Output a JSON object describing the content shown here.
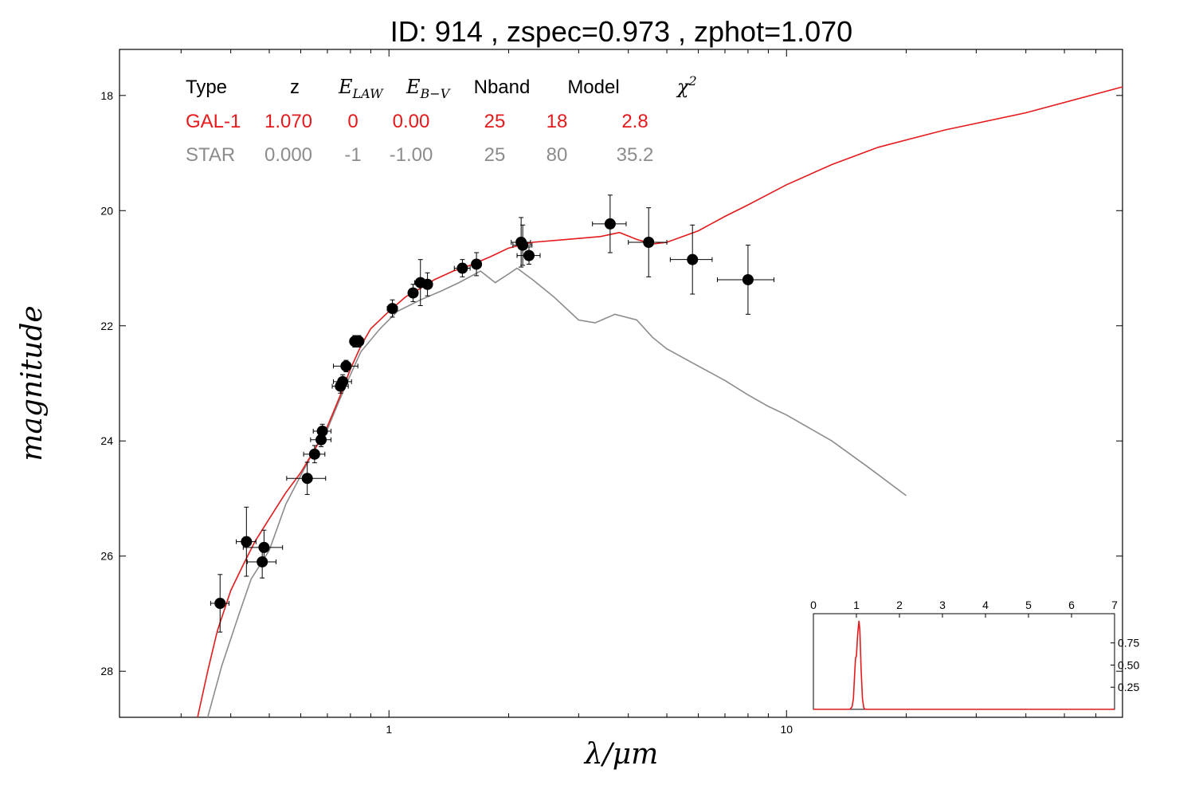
{
  "chart_data": {
    "type": "scatter",
    "title": "ID:  914    , zspec=0.973 , zphot=1.070",
    "xlabel": "λ/μm",
    "ylabel": "magnitude",
    "xscale": "log",
    "xlim": [
      0.21,
      70
    ],
    "ylim": [
      28.8,
      17.2
    ],
    "y_inverted": true,
    "x_tick_labels": [
      {
        "value": 1,
        "label": "1"
      },
      {
        "value": 10,
        "label": "10"
      }
    ],
    "y_tick_labels": [
      {
        "value": 18,
        "label": "18"
      },
      {
        "value": 20,
        "label": "20"
      },
      {
        "value": 22,
        "label": "22"
      },
      {
        "value": 24,
        "label": "24"
      },
      {
        "value": 26,
        "label": "26"
      },
      {
        "value": 28,
        "label": "28"
      }
    ],
    "colors": {
      "galaxy": "#e41a1c",
      "star": "#8c8c8c",
      "points": "#000000"
    },
    "fit_table": {
      "headers": [
        "Type",
        "z",
        "E",
        "E",
        "Nband",
        "Model",
        "χ"
      ],
      "header_subscripts": [
        "",
        "",
        "LAW",
        "B−V",
        "",
        "",
        ""
      ],
      "header_superscripts": [
        "",
        "",
        "",
        "",
        "",
        "",
        "2"
      ],
      "rows": [
        {
          "color": "#e41a1c",
          "cells": [
            "GAL-1",
            "1.070",
            "0",
            "0.00",
            "25",
            "18",
            "2.8"
          ]
        },
        {
          "color": "#8c8c8c",
          "cells": [
            "STAR",
            "0.000",
            "-1",
            "-1.00",
            "25",
            "80",
            "35.2"
          ]
        }
      ]
    },
    "photometry": [
      {
        "x": 0.376,
        "y": 26.82,
        "xerr": 0.02,
        "yerr": 0.5
      },
      {
        "x": 0.438,
        "y": 25.75,
        "xerr": 0.025,
        "yerr": 0.6
      },
      {
        "x": 0.48,
        "y": 26.1,
        "xerr": 0.04,
        "yerr": 0.28
      },
      {
        "x": 0.485,
        "y": 25.85,
        "xerr": 0.055,
        "yerr": 0.3
      },
      {
        "x": 0.623,
        "y": 24.65,
        "xerr": 0.07,
        "yerr": 0.28
      },
      {
        "x": 0.65,
        "y": 24.23,
        "xerr": 0.04,
        "yerr": 0.15
      },
      {
        "x": 0.675,
        "y": 23.98,
        "xerr": 0.04,
        "yerr": 0.12
      },
      {
        "x": 0.68,
        "y": 23.83,
        "xerr": 0.035,
        "yerr": 0.12
      },
      {
        "x": 0.755,
        "y": 23.05,
        "xerr": 0.035,
        "yerr": 0.12
      },
      {
        "x": 0.765,
        "y": 22.97,
        "xerr": 0.04,
        "yerr": 0.12
      },
      {
        "x": 0.78,
        "y": 22.7,
        "xerr": 0.055,
        "yerr": 0.1
      },
      {
        "x": 0.82,
        "y": 22.27,
        "xerr": 0.02,
        "yerr": 0.1
      },
      {
        "x": 0.84,
        "y": 22.27,
        "xerr": 0.02,
        "yerr": 0.1
      },
      {
        "x": 1.02,
        "y": 21.7,
        "xerr": 0.03,
        "yerr": 0.15
      },
      {
        "x": 1.15,
        "y": 21.43,
        "xerr": 0.03,
        "yerr": 0.15
      },
      {
        "x": 1.2,
        "y": 21.25,
        "xerr": 0.04,
        "yerr": 0.4
      },
      {
        "x": 1.25,
        "y": 21.28,
        "xerr": 0.03,
        "yerr": 0.2
      },
      {
        "x": 1.53,
        "y": 21.0,
        "xerr": 0.07,
        "yerr": 0.15
      },
      {
        "x": 1.66,
        "y": 20.93,
        "xerr": 0.04,
        "yerr": 0.2
      },
      {
        "x": 2.15,
        "y": 20.55,
        "xerr": 0.12,
        "yerr": 0.43
      },
      {
        "x": 2.17,
        "y": 20.6,
        "xerr": 0.12,
        "yerr": 0.35
      },
      {
        "x": 2.25,
        "y": 20.78,
        "xerr": 0.15,
        "yerr": 0.15
      },
      {
        "x": 3.6,
        "y": 20.23,
        "xerr": 0.35,
        "yerr": 0.5
      },
      {
        "x": 4.5,
        "y": 20.55,
        "xerr": 0.5,
        "yerr": 0.6
      },
      {
        "x": 5.8,
        "y": 20.85,
        "xerr": 0.7,
        "yerr": 0.6
      },
      {
        "x": 8.0,
        "y": 21.2,
        "xerr": 1.3,
        "yerr": 0.6
      }
    ],
    "galaxy_model": [
      [
        0.33,
        28.8
      ],
      [
        0.35,
        28.0
      ],
      [
        0.37,
        27.3
      ],
      [
        0.4,
        26.6
      ],
      [
        0.43,
        26.15
      ],
      [
        0.46,
        25.75
      ],
      [
        0.5,
        25.35
      ],
      [
        0.55,
        24.9
      ],
      [
        0.6,
        24.55
      ],
      [
        0.65,
        24.15
      ],
      [
        0.7,
        23.75
      ],
      [
        0.75,
        23.25
      ],
      [
        0.8,
        22.75
      ],
      [
        0.85,
        22.35
      ],
      [
        0.9,
        22.05
      ],
      [
        1.0,
        21.75
      ],
      [
        1.1,
        21.5
      ],
      [
        1.2,
        21.35
      ],
      [
        1.3,
        21.2
      ],
      [
        1.45,
        21.05
      ],
      [
        1.6,
        20.95
      ],
      [
        1.8,
        20.8
      ],
      [
        2.0,
        20.65
      ],
      [
        2.3,
        20.55
      ],
      [
        2.8,
        20.5
      ],
      [
        3.4,
        20.45
      ],
      [
        3.8,
        20.38
      ],
      [
        4.2,
        20.5
      ],
      [
        4.6,
        20.58
      ],
      [
        5.0,
        20.55
      ],
      [
        6.0,
        20.35
      ],
      [
        7.0,
        20.1
      ],
      [
        8.0,
        19.9
      ],
      [
        10.0,
        19.55
      ],
      [
        13.0,
        19.2
      ],
      [
        17.0,
        18.9
      ],
      [
        25.0,
        18.6
      ],
      [
        40.0,
        18.3
      ],
      [
        70.0,
        17.85
      ]
    ],
    "star_model": [
      [
        0.35,
        28.8
      ],
      [
        0.38,
        27.9
      ],
      [
        0.42,
        27.0
      ],
      [
        0.45,
        26.4
      ],
      [
        0.5,
        25.9
      ],
      [
        0.55,
        25.1
      ],
      [
        0.6,
        24.6
      ],
      [
        0.65,
        24.15
      ],
      [
        0.7,
        23.8
      ],
      [
        0.75,
        23.3
      ],
      [
        0.8,
        22.85
      ],
      [
        0.85,
        22.45
      ],
      [
        0.95,
        22.05
      ],
      [
        1.05,
        21.75
      ],
      [
        1.2,
        21.55
      ],
      [
        1.35,
        21.4
      ],
      [
        1.5,
        21.25
      ],
      [
        1.7,
        21.05
      ],
      [
        1.85,
        21.25
      ],
      [
        2.0,
        21.1
      ],
      [
        2.1,
        21.0
      ],
      [
        2.3,
        21.2
      ],
      [
        2.6,
        21.5
      ],
      [
        3.0,
        21.9
      ],
      [
        3.3,
        21.95
      ],
      [
        3.7,
        21.8
      ],
      [
        4.2,
        21.9
      ],
      [
        4.6,
        22.2
      ],
      [
        5.0,
        22.4
      ],
      [
        6.0,
        22.7
      ],
      [
        7.0,
        22.95
      ],
      [
        8.0,
        23.2
      ],
      [
        9.0,
        23.4
      ],
      [
        10.0,
        23.55
      ],
      [
        13.0,
        24.0
      ],
      [
        16.0,
        24.45
      ],
      [
        20.0,
        24.95
      ]
    ],
    "inset": {
      "type": "line",
      "description_hidden": true,
      "xlim": [
        0,
        7
      ],
      "ylim": [
        0,
        1.08
      ],
      "x_tick_labels": [
        "0",
        "1",
        "2",
        "3",
        "4",
        "5",
        "6",
        "7"
      ],
      "y_tick_labels": [
        {
          "value": 0.25,
          "label": "0.25"
        },
        {
          "value": 0.5,
          "label": "0.50"
        },
        {
          "value": 0.75,
          "label": "0.75"
        }
      ],
      "pdf": [
        [
          0,
          0
        ],
        [
          0.85,
          0
        ],
        [
          0.9,
          0.03
        ],
        [
          0.93,
          0.12
        ],
        [
          0.96,
          0.4
        ],
        [
          0.98,
          0.58
        ],
        [
          1.0,
          0.6
        ],
        [
          1.03,
          0.85
        ],
        [
          1.06,
          1.0
        ],
        [
          1.08,
          0.9
        ],
        [
          1.11,
          0.45
        ],
        [
          1.14,
          0.12
        ],
        [
          1.17,
          0.02
        ],
        [
          1.2,
          0
        ],
        [
          7,
          0
        ]
      ]
    }
  }
}
